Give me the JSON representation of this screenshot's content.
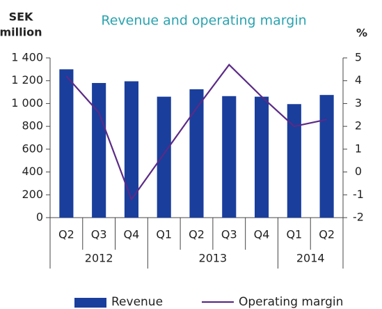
{
  "chart_data": {
    "type": "bar_line",
    "title": "Revenue and operating margin",
    "ylabel": [
      "SEK",
      "million"
    ],
    "y2label": "%",
    "categories": [
      "Q2",
      "Q3",
      "Q4",
      "Q1",
      "Q2",
      "Q3",
      "Q4",
      "Q1",
      "Q2"
    ],
    "groups": [
      {
        "label": "2012",
        "count": 3
      },
      {
        "label": "2013",
        "count": 4
      },
      {
        "label": "2014",
        "count": 2
      }
    ],
    "series": [
      {
        "name": "Revenue",
        "type": "bar",
        "color": "#1a3e9c",
        "values": [
          1300,
          1180,
          1195,
          1060,
          1125,
          1065,
          1060,
          995,
          1075
        ]
      },
      {
        "name": "Operating margin",
        "type": "line",
        "axis": "y2",
        "color": "#5b2a86",
        "values": [
          4.2,
          2.6,
          -1.2,
          0.8,
          2.8,
          4.7,
          3.3,
          2.0,
          2.3
        ]
      }
    ],
    "ylim": [
      0,
      1400
    ],
    "yticks": [
      0,
      200,
      400,
      600,
      800,
      {
        "value": 1000,
        "label": "1 000"
      },
      {
        "value": 1200,
        "label": "1 200"
      },
      {
        "value": 1400,
        "label": "1 400"
      }
    ],
    "y2lim": [
      -2,
      5
    ],
    "y2ticks": [
      -2,
      -1,
      0,
      1,
      2,
      3,
      4,
      5
    ]
  }
}
